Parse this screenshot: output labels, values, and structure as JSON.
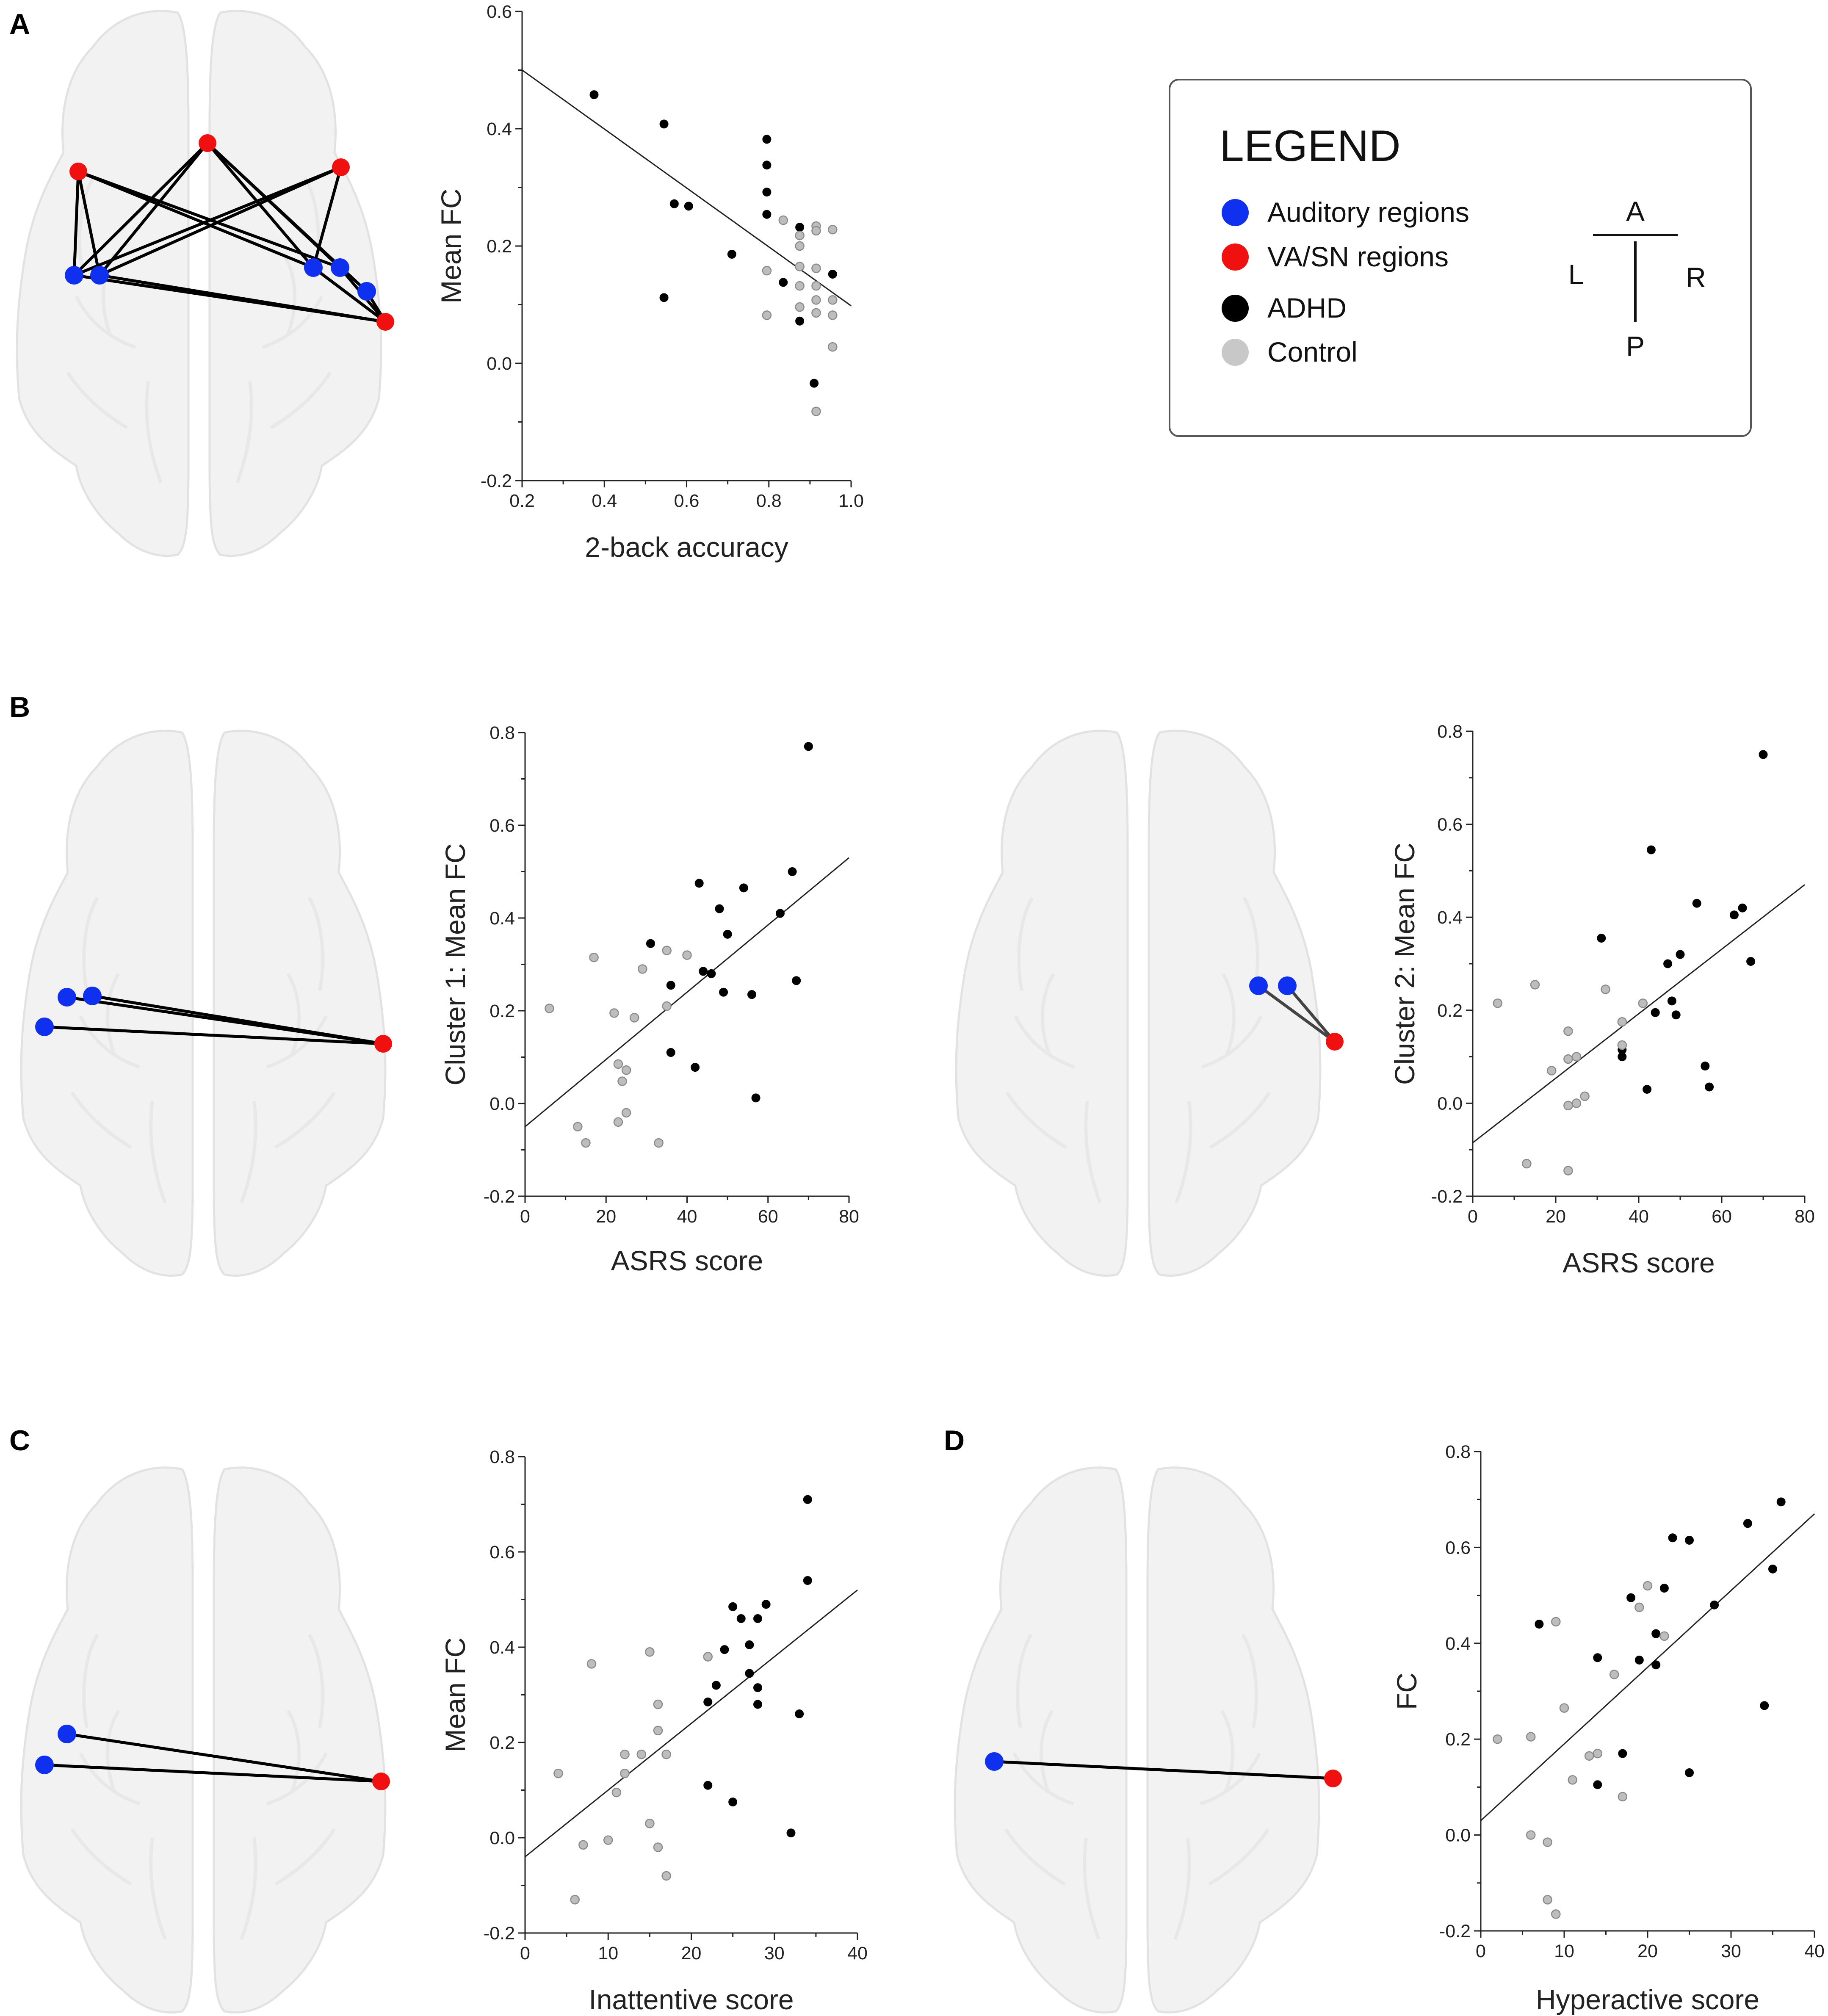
{
  "colors": {
    "auditory": "#1030f0",
    "vasn": "#f01010",
    "adhd": "#000000",
    "control": "#bdbdbd",
    "control_stroke": "#8a8a8a",
    "brain": "#f2f2f2",
    "brain_stroke": "#e2e2e2"
  },
  "legend": {
    "title": "LEGEND",
    "items": [
      {
        "label": "Auditory regions",
        "color_key": "auditory",
        "icon": "blue-circle"
      },
      {
        "label": "VA/SN regions",
        "color_key": "vasn",
        "icon": "red-circle"
      },
      {
        "label": "ADHD",
        "color_key": "adhd",
        "icon": "black-circle"
      },
      {
        "label": "Control",
        "color_key": "control",
        "icon": "gray-circle"
      }
    ],
    "orientation": {
      "anterior": "A",
      "posterior": "P",
      "left": "L",
      "right": "R"
    }
  },
  "panels": [
    {
      "letter": "A"
    },
    {
      "letter": "B"
    },
    {
      "letter": "C"
    },
    {
      "letter": "D"
    }
  ],
  "chart_data": [
    {
      "id": "A",
      "type": "scatter",
      "title": "",
      "xlabel": "2-back accuracy",
      "ylabel": "Mean FC",
      "xlim": [
        0.2,
        1.0
      ],
      "ylim": [
        -0.2,
        0.6
      ],
      "xticks": [
        "0.2",
        "0.4",
        "0.6",
        "0.8",
        "1.0"
      ],
      "yticks": [
        "-0.2",
        "0.0",
        "0.2",
        "0.4",
        "0.6"
      ],
      "xtick_values": [
        0.2,
        0.4,
        0.6,
        0.8,
        1.0
      ],
      "ytick_values": [
        -0.2,
        0.0,
        0.2,
        0.4,
        0.6
      ],
      "fit_line": {
        "x": [
          0.2,
          1.0
        ],
        "y": [
          0.5,
          0.098
        ]
      },
      "series": [
        {
          "name": "ADHD",
          "points": [
            [
              0.375,
              0.458
            ],
            [
              0.545,
              0.408
            ],
            [
              0.545,
              0.112
            ],
            [
              0.57,
              0.272
            ],
            [
              0.605,
              0.268
            ],
            [
              0.71,
              0.186
            ],
            [
              0.795,
              0.382
            ],
            [
              0.795,
              0.338
            ],
            [
              0.795,
              0.292
            ],
            [
              0.795,
              0.254
            ],
            [
              0.835,
              0.138
            ],
            [
              0.875,
              0.232
            ],
            [
              0.875,
              0.072
            ],
            [
              0.91,
              -0.034
            ],
            [
              0.955,
              0.152
            ]
          ]
        },
        {
          "name": "Control",
          "points": [
            [
              0.795,
              0.158
            ],
            [
              0.795,
              0.082
            ],
            [
              0.835,
              0.244
            ],
            [
              0.875,
              0.218
            ],
            [
              0.875,
              0.2
            ],
            [
              0.875,
              0.165
            ],
            [
              0.875,
              0.132
            ],
            [
              0.875,
              0.096
            ],
            [
              0.915,
              0.234
            ],
            [
              0.915,
              0.226
            ],
            [
              0.915,
              0.162
            ],
            [
              0.915,
              0.132
            ],
            [
              0.915,
              0.108
            ],
            [
              0.915,
              0.086
            ],
            [
              0.915,
              -0.082
            ],
            [
              0.955,
              0.228
            ],
            [
              0.955,
              0.108
            ],
            [
              0.955,
              0.082
            ],
            [
              0.955,
              0.028
            ]
          ]
        }
      ]
    },
    {
      "id": "B1",
      "type": "scatter",
      "title": "",
      "xlabel": "ASRS score",
      "ylabel": "Cluster 1: Mean FC",
      "xlim": [
        0,
        80
      ],
      "ylim": [
        -0.2,
        0.8
      ],
      "xticks": [
        "0",
        "20",
        "40",
        "60",
        "80"
      ],
      "yticks": [
        "-0.2",
        "0.0",
        "0.2",
        "0.4",
        "0.6",
        "0.8"
      ],
      "xtick_values": [
        0,
        20,
        40,
        60,
        80
      ],
      "ytick_values": [
        -0.2,
        0.0,
        0.2,
        0.4,
        0.6,
        0.8
      ],
      "fit_line": {
        "x": [
          0,
          80
        ],
        "y": [
          -0.05,
          0.53
        ]
      },
      "series": [
        {
          "name": "ADHD",
          "points": [
            [
              70,
              0.77
            ],
            [
              66,
              0.5
            ],
            [
              63,
              0.41
            ],
            [
              67,
              0.265
            ],
            [
              43,
              0.475
            ],
            [
              54,
              0.465
            ],
            [
              48,
              0.42
            ],
            [
              31,
              0.345
            ],
            [
              50,
              0.365
            ],
            [
              44,
              0.285
            ],
            [
              46,
              0.28
            ],
            [
              36,
              0.255
            ],
            [
              49,
              0.24
            ],
            [
              56,
              0.235
            ],
            [
              36,
              0.11
            ],
            [
              42,
              0.078
            ],
            [
              57,
              0.012
            ]
          ]
        },
        {
          "name": "Control",
          "points": [
            [
              6,
              0.205
            ],
            [
              17,
              0.315
            ],
            [
              29,
              0.29
            ],
            [
              35,
              0.33
            ],
            [
              40,
              0.32
            ],
            [
              35,
              0.21
            ],
            [
              22,
              0.195
            ],
            [
              27,
              0.185
            ],
            [
              23,
              0.085
            ],
            [
              25,
              0.072
            ],
            [
              24,
              0.048
            ],
            [
              25,
              -0.02
            ],
            [
              23,
              -0.04
            ],
            [
              13,
              -0.05
            ],
            [
              15,
              -0.085
            ],
            [
              33,
              -0.085
            ]
          ]
        }
      ]
    },
    {
      "id": "B2",
      "type": "scatter",
      "title": "",
      "xlabel": "ASRS score",
      "ylabel": "Cluster 2: Mean FC",
      "xlim": [
        0,
        80
      ],
      "ylim": [
        -0.2,
        0.8
      ],
      "xticks": [
        "0",
        "20",
        "40",
        "60",
        "80"
      ],
      "yticks": [
        "-0.2",
        "0.0",
        "0.2",
        "0.4",
        "0.6",
        "0.8"
      ],
      "xtick_values": [
        0,
        20,
        40,
        60,
        80
      ],
      "ytick_values": [
        -0.2,
        0.0,
        0.2,
        0.4,
        0.6,
        0.8
      ],
      "fit_line": {
        "x": [
          0,
          80
        ],
        "y": [
          -0.085,
          0.47
        ]
      },
      "series": [
        {
          "name": "ADHD",
          "points": [
            [
              70,
              0.75
            ],
            [
              43,
              0.545
            ],
            [
              54,
              0.43
            ],
            [
              65,
              0.42
            ],
            [
              63,
              0.405
            ],
            [
              67,
              0.305
            ],
            [
              31,
              0.355
            ],
            [
              47,
              0.3
            ],
            [
              50,
              0.32
            ],
            [
              48,
              0.22
            ],
            [
              44,
              0.195
            ],
            [
              49,
              0.19
            ],
            [
              36,
              0.115
            ],
            [
              36,
              0.1
            ],
            [
              42,
              0.03
            ],
            [
              56,
              0.08
            ],
            [
              57,
              0.035
            ]
          ]
        },
        {
          "name": "Control",
          "points": [
            [
              6,
              0.215
            ],
            [
              15,
              0.255
            ],
            [
              32,
              0.245
            ],
            [
              41,
              0.215
            ],
            [
              36,
              0.175
            ],
            [
              23,
              0.155
            ],
            [
              23,
              0.095
            ],
            [
              25,
              0.1
            ],
            [
              19,
              0.07
            ],
            [
              36,
              0.125
            ],
            [
              23,
              -0.005
            ],
            [
              25,
              0.0
            ],
            [
              27,
              0.015
            ],
            [
              13,
              -0.13
            ],
            [
              23,
              -0.145
            ]
          ]
        }
      ]
    },
    {
      "id": "C",
      "type": "scatter",
      "title": "",
      "xlabel": "Inattentive score",
      "ylabel": "Mean FC",
      "xlim": [
        0,
        40
      ],
      "ylim": [
        -0.2,
        0.8
      ],
      "xticks": [
        "0",
        "10",
        "20",
        "30",
        "40"
      ],
      "yticks": [
        "-0.2",
        "0.0",
        "0.2",
        "0.4",
        "0.6",
        "0.8"
      ],
      "xtick_values": [
        0,
        10,
        20,
        30,
        40
      ],
      "ytick_values": [
        -0.2,
        0.0,
        0.2,
        0.4,
        0.6,
        0.8
      ],
      "fit_line": {
        "x": [
          0,
          40
        ],
        "y": [
          -0.04,
          0.52
        ]
      },
      "series": [
        {
          "name": "ADHD",
          "points": [
            [
              34,
              0.71
            ],
            [
              34,
              0.54
            ],
            [
              29,
              0.49
            ],
            [
              25,
              0.485
            ],
            [
              26,
              0.46
            ],
            [
              28,
              0.46
            ],
            [
              24,
              0.395
            ],
            [
              27,
              0.405
            ],
            [
              27,
              0.345
            ],
            [
              23,
              0.32
            ],
            [
              28,
              0.315
            ],
            [
              22,
              0.285
            ],
            [
              28,
              0.28
            ],
            [
              33,
              0.26
            ],
            [
              22,
              0.11
            ],
            [
              25,
              0.075
            ],
            [
              32,
              0.01
            ]
          ]
        },
        {
          "name": "Control",
          "points": [
            [
              8,
              0.365
            ],
            [
              15,
              0.39
            ],
            [
              22,
              0.38
            ],
            [
              16,
              0.28
            ],
            [
              16,
              0.225
            ],
            [
              12,
              0.175
            ],
            [
              14,
              0.175
            ],
            [
              17,
              0.175
            ],
            [
              12,
              0.135
            ],
            [
              4,
              0.135
            ],
            [
              11,
              0.095
            ],
            [
              15,
              0.03
            ],
            [
              10,
              -0.005
            ],
            [
              7,
              -0.015
            ],
            [
              16,
              -0.02
            ],
            [
              17,
              -0.08
            ],
            [
              6,
              -0.13
            ]
          ]
        }
      ]
    },
    {
      "id": "D",
      "type": "scatter",
      "title": "",
      "xlabel": "Hyperactive score",
      "ylabel": "FC",
      "xlim": [
        0,
        40
      ],
      "ylim": [
        -0.2,
        0.8
      ],
      "xticks": [
        "0",
        "10",
        "20",
        "30",
        "40"
      ],
      "yticks": [
        "-0.2",
        "0.0",
        "0.2",
        "0.4",
        "0.6",
        "0.8"
      ],
      "xtick_values": [
        0,
        10,
        20,
        30,
        40
      ],
      "ytick_values": [
        -0.2,
        0.0,
        0.2,
        0.4,
        0.6,
        0.8
      ],
      "fit_line": {
        "x": [
          0,
          40
        ],
        "y": [
          0.03,
          0.67
        ]
      },
      "series": [
        {
          "name": "ADHD",
          "points": [
            [
              36,
              0.695
            ],
            [
              32,
              0.65
            ],
            [
              23,
              0.62
            ],
            [
              25,
              0.615
            ],
            [
              35,
              0.555
            ],
            [
              22,
              0.515
            ],
            [
              18,
              0.495
            ],
            [
              28,
              0.48
            ],
            [
              7,
              0.44
            ],
            [
              21,
              0.42
            ],
            [
              14,
              0.37
            ],
            [
              19,
              0.365
            ],
            [
              21,
              0.355
            ],
            [
              34,
              0.27
            ],
            [
              17,
              0.17
            ],
            [
              25,
              0.13
            ],
            [
              14,
              0.105
            ]
          ]
        },
        {
          "name": "Control",
          "points": [
            [
              20,
              0.52
            ],
            [
              19,
              0.475
            ],
            [
              22,
              0.415
            ],
            [
              9,
              0.445
            ],
            [
              16,
              0.335
            ],
            [
              10,
              0.265
            ],
            [
              2,
              0.2
            ],
            [
              6,
              0.205
            ],
            [
              13,
              0.165
            ],
            [
              14,
              0.17
            ],
            [
              11,
              0.115
            ],
            [
              17,
              0.08
            ],
            [
              6,
              0.0
            ],
            [
              8,
              -0.015
            ],
            [
              8,
              -0.135
            ],
            [
              9,
              -0.165
            ]
          ]
        }
      ]
    }
  ]
}
